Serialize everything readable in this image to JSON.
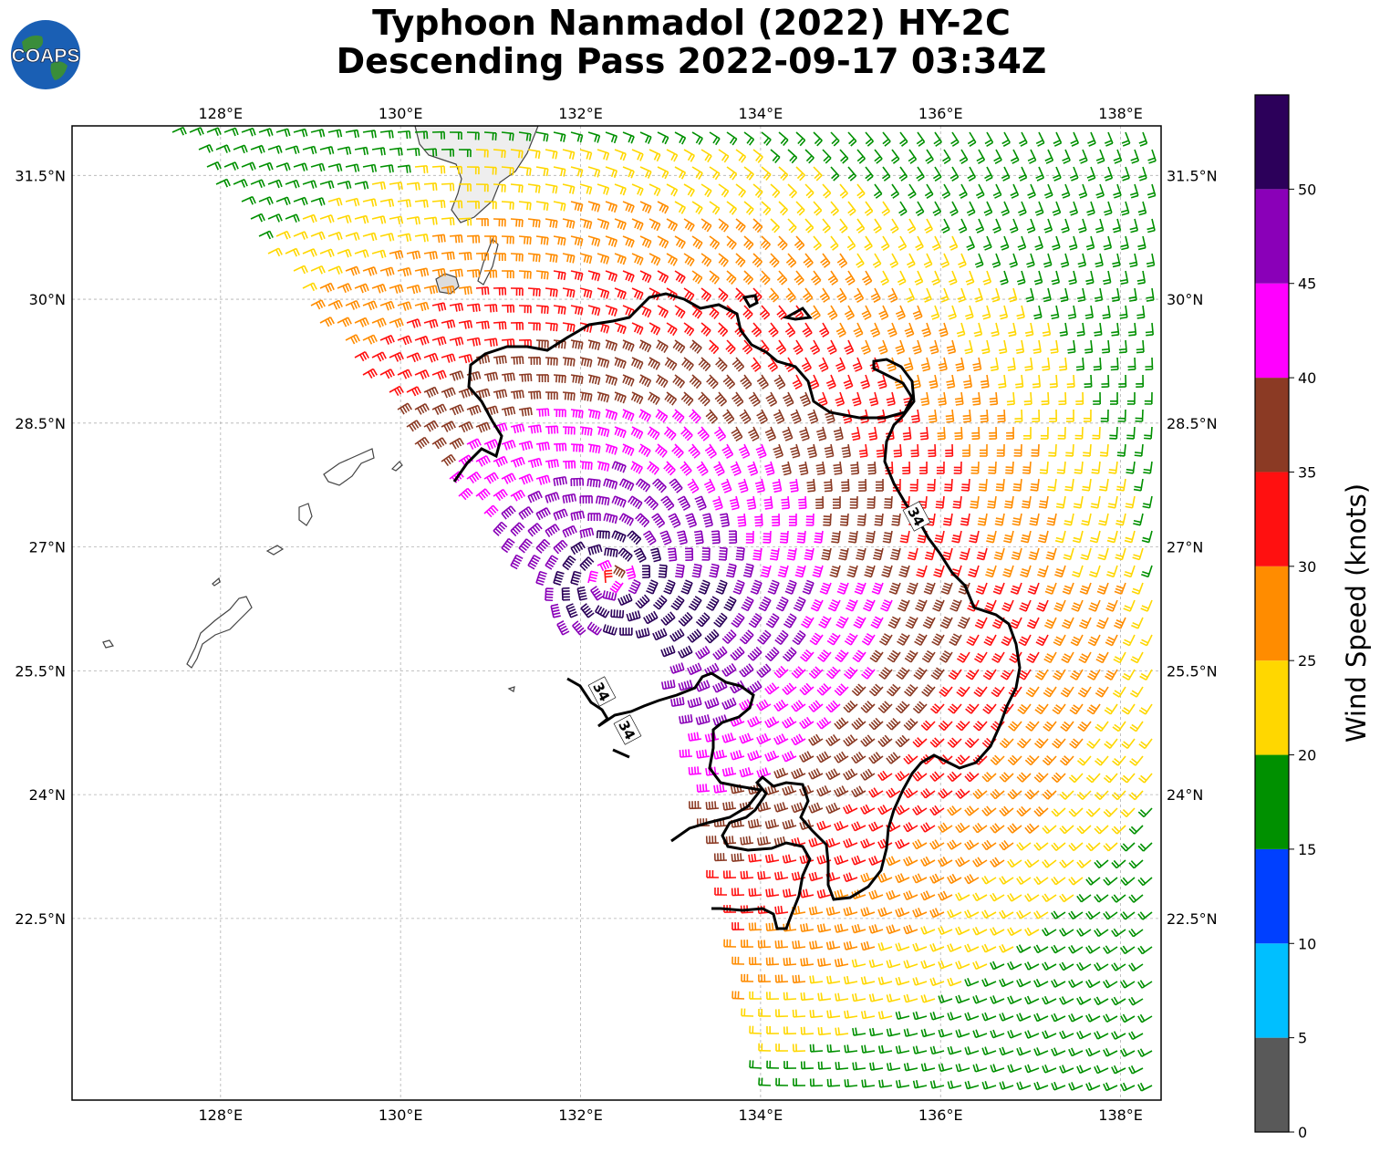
{
  "title": {
    "line1": "Typhoon Nanmadol (2022) HY-2C",
    "line2": "Descending Pass 2022-09-17 03:34Z"
  },
  "logo": {
    "text": "COAPS",
    "icon": "globe-icon"
  },
  "map": {
    "lon_range": [
      126.35,
      138.45
    ],
    "lat_range": [
      20.3,
      32.1
    ],
    "lon_ticks": [
      {
        "value": 128,
        "label": "128°E"
      },
      {
        "value": 130,
        "label": "130°E"
      },
      {
        "value": 132,
        "label": "132°E"
      },
      {
        "value": 134,
        "label": "134°E"
      },
      {
        "value": 136,
        "label": "136°E"
      },
      {
        "value": 138,
        "label": "138°E"
      }
    ],
    "lat_ticks": [
      {
        "value": 22.5,
        "label": "22.5°N"
      },
      {
        "value": 24,
        "label": "24°N"
      },
      {
        "value": 25.5,
        "label": "25.5°N"
      },
      {
        "value": 27,
        "label": "27°N"
      },
      {
        "value": 28.5,
        "label": "28.5°N"
      },
      {
        "value": 30,
        "label": "30°N"
      },
      {
        "value": 31.5,
        "label": "31.5°N"
      }
    ],
    "gridlines": true,
    "storm_center": {
      "lon": 132.35,
      "lat": 26.6
    },
    "contour_label": "34",
    "contour_label_count": 3
  },
  "colorbar": {
    "label": "Wind Speed (knots)",
    "bins": [
      {
        "from": 0,
        "to": 5,
        "color": "#595959"
      },
      {
        "from": 5,
        "to": 10,
        "color": "#00bfff"
      },
      {
        "from": 10,
        "to": 15,
        "color": "#0040ff"
      },
      {
        "from": 15,
        "to": 20,
        "color": "#009000"
      },
      {
        "from": 20,
        "to": 25,
        "color": "#ffd700"
      },
      {
        "from": 25,
        "to": 30,
        "color": "#ff8c00"
      },
      {
        "from": 30,
        "to": 35,
        "color": "#ff1010"
      },
      {
        "from": 35,
        "to": 40,
        "color": "#8b3a24"
      },
      {
        "from": 40,
        "to": 45,
        "color": "#ff00ff"
      },
      {
        "from": 45,
        "to": 50,
        "color": "#8a00b8"
      },
      {
        "from": 50,
        "to": 55,
        "color": "#2c005a"
      }
    ],
    "tick_labels": [
      "0",
      "5",
      "10",
      "15",
      "20",
      "25",
      "30",
      "35",
      "40",
      "45",
      "50"
    ]
  }
}
